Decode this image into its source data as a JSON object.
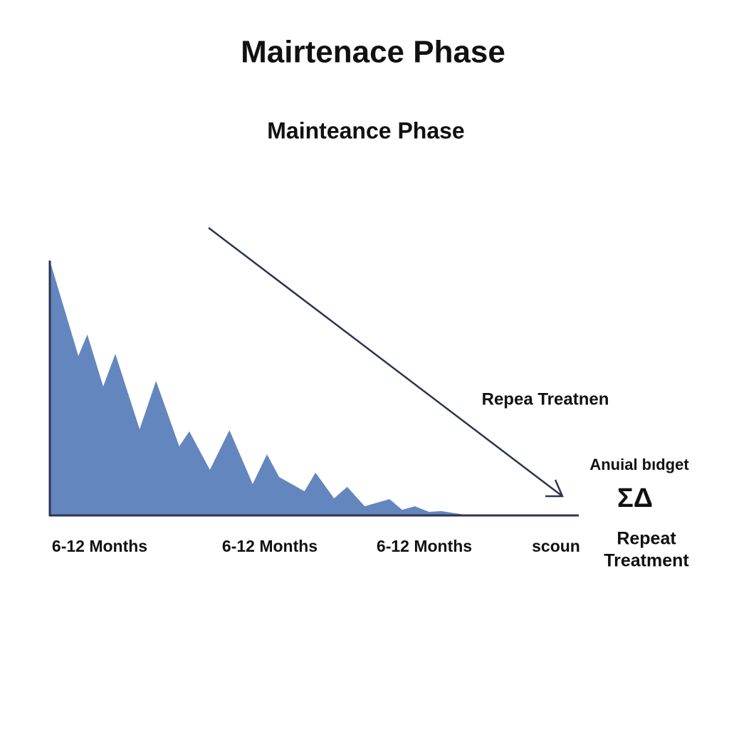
{
  "chart_data": {
    "type": "area",
    "title": "Mairtenace Phase",
    "subtitle": "Mainteance Phase",
    "x": [
      0,
      5.4,
      7.1,
      10.1,
      12.4,
      17.0,
      20.1,
      24.5,
      26.4,
      30.3,
      34.0,
      38.4,
      41.1,
      43.4,
      48.2,
      50.3,
      53.8,
      56.3,
      59.6,
      64.3,
      66.7,
      69.1,
      71.8,
      74.1,
      79.5
    ],
    "values": [
      100,
      62.6,
      71,
      50.6,
      63.4,
      33.8,
      52.8,
      27.1,
      33,
      17.9,
      33.5,
      12.3,
      24,
      15.1,
      9.5,
      16.8,
      6.7,
      11.2,
      3.6,
      6.4,
      2.2,
      3.6,
      1.4,
      1.7,
      0
    ],
    "color": "#6486bf",
    "xlim": [
      0,
      100
    ],
    "ylim": [
      0,
      100
    ],
    "x_labels": [
      "6-12 Months",
      "6-12 Months",
      "6-12 Months",
      "scoun"
    ],
    "annotations": [
      "Repea Treatnen",
      "Anuial bıdget",
      "ΣΔ",
      "Repeat",
      "Treatment"
    ]
  }
}
